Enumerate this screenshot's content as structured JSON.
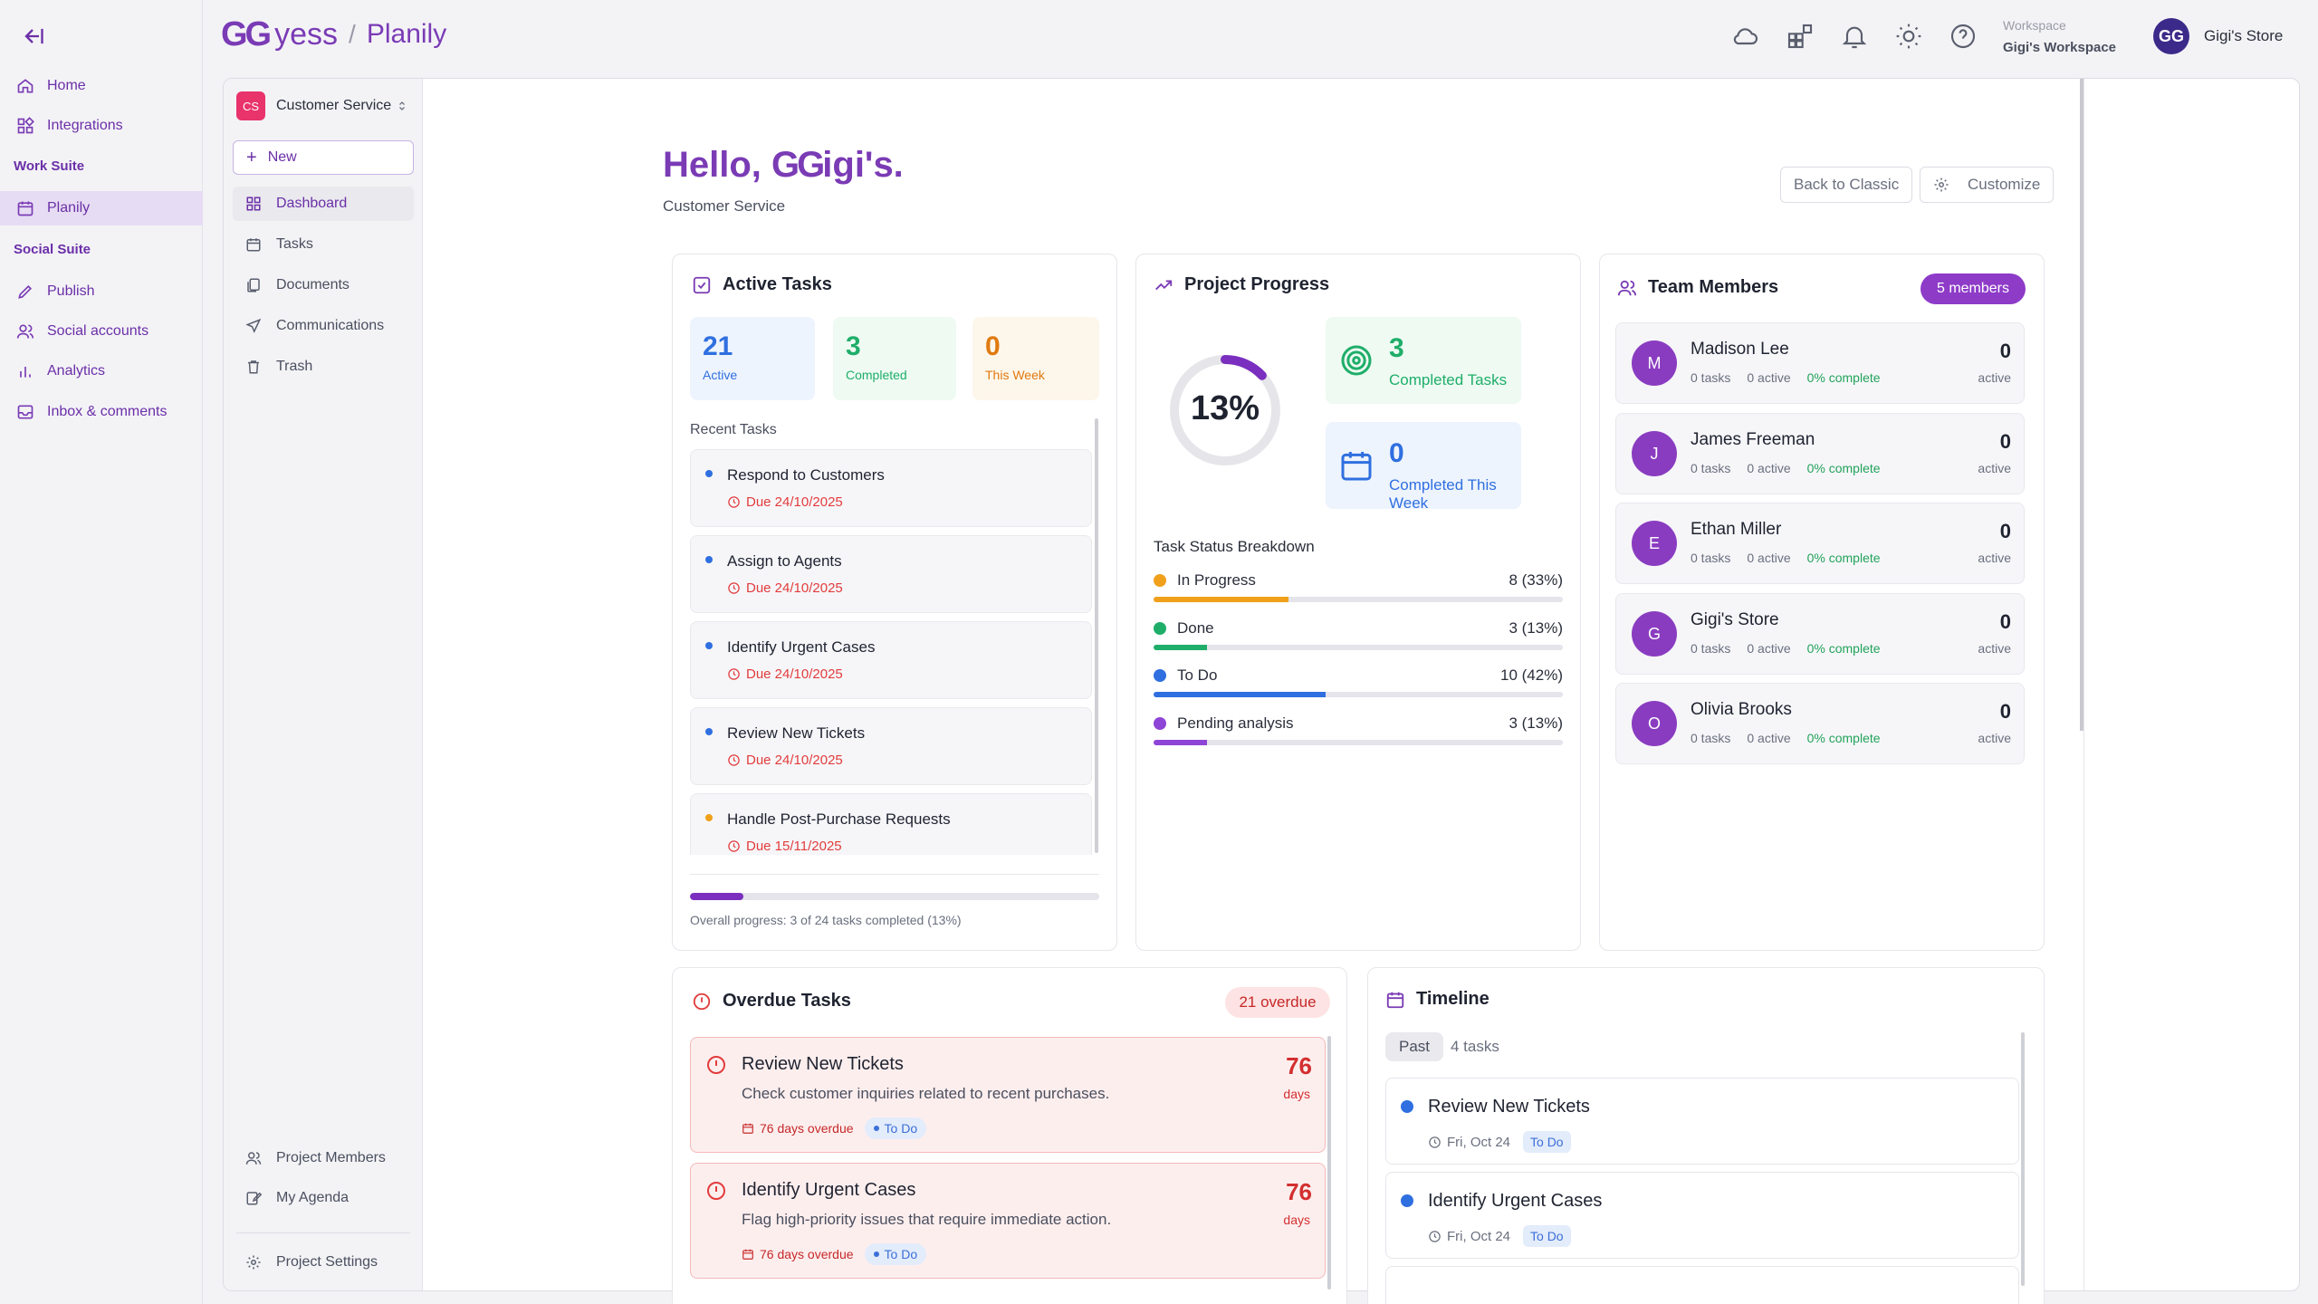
{
  "app": {
    "logo_mark": "GG",
    "logo_word": "yess",
    "separator": "/",
    "app_name": "Planily"
  },
  "appnav": {
    "home": "Home",
    "integrations": "Integrations",
    "work_suite": "Work Suite",
    "planily": "Planily",
    "social_suite": "Social Suite",
    "publish": "Publish",
    "social_accounts": "Social accounts",
    "analytics": "Analytics",
    "inbox": "Inbox & comments"
  },
  "topbar": {
    "workspace_label": "Workspace",
    "workspace_name": "Gigi's Workspace",
    "store_initials": "GG",
    "store_name": "Gigi's Store"
  },
  "project": {
    "badge": "CS",
    "name": "Customer Service",
    "new_label": "New",
    "nav": [
      "Dashboard",
      "Tasks",
      "Documents",
      "Communications",
      "Trash"
    ],
    "bottom_nav": [
      "Project Members",
      "My Agenda",
      "Project Settings"
    ]
  },
  "greeting": {
    "hello": "Hello, ",
    "logo_mark": "GG",
    "name": "igi's.",
    "subtitle": "Customer Service",
    "back_classic": "Back to Classic",
    "customize": "Customize"
  },
  "active_tasks": {
    "title": "Active Tasks",
    "stats": [
      {
        "num": "21",
        "label": "Active"
      },
      {
        "num": "3",
        "label": "Completed"
      },
      {
        "num": "0",
        "label": "This Week"
      }
    ],
    "recent_label": "Recent Tasks",
    "tasks": [
      {
        "name": "Respond to Customers",
        "due": "Due 24/10/2025",
        "dot": "#2f6fe0"
      },
      {
        "name": "Assign to Agents",
        "due": "Due 24/10/2025",
        "dot": "#2f6fe0"
      },
      {
        "name": "Identify Urgent Cases",
        "due": "Due 24/10/2025",
        "dot": "#2f6fe0"
      },
      {
        "name": "Review New Tickets",
        "due": "Due 24/10/2025",
        "dot": "#2f6fe0"
      },
      {
        "name": "Handle Post-Purchase Requests",
        "due": "Due 15/11/2025",
        "dot": "#f0a01a"
      }
    ],
    "overall_progress": 0.13,
    "overall_text": "Overall progress: 3 of 24 tasks completed (13%)"
  },
  "project_progress": {
    "title": "Project Progress",
    "percent": 0.13,
    "percent_label": "13%",
    "completed": {
      "num": "3",
      "label": "Completed Tasks"
    },
    "completed_week": {
      "num": "0",
      "label": "Completed This Week"
    },
    "breakdown_title": "Task Status Breakdown",
    "breakdown": [
      {
        "label": "In Progress",
        "value": "8 (33%)",
        "fraction": 0.33,
        "color": "#f0a01a"
      },
      {
        "label": "Done",
        "value": "3 (13%)",
        "fraction": 0.13,
        "color": "#1fae6a"
      },
      {
        "label": "To Do",
        "value": "10 (42%)",
        "fraction": 0.42,
        "color": "#2f6fe0"
      },
      {
        "label": "Pending analysis",
        "value": "3 (13%)",
        "fraction": 0.13,
        "color": "#8e44d6"
      }
    ]
  },
  "team": {
    "title": "Team Members",
    "badge": "5 members",
    "members": [
      {
        "initial": "M",
        "name": "Madison Lee",
        "tasks": "0 tasks",
        "active": "0 active",
        "pct": "0% complete",
        "count": "0",
        "count_label": "active"
      },
      {
        "initial": "J",
        "name": "James Freeman",
        "tasks": "0 tasks",
        "active": "0 active",
        "pct": "0% complete",
        "count": "0",
        "count_label": "active"
      },
      {
        "initial": "E",
        "name": "Ethan Miller",
        "tasks": "0 tasks",
        "active": "0 active",
        "pct": "0% complete",
        "count": "0",
        "count_label": "active"
      },
      {
        "initial": "G",
        "name": "Gigi's Store",
        "tasks": "0 tasks",
        "active": "0 active",
        "pct": "0% complete",
        "count": "0",
        "count_label": "active"
      },
      {
        "initial": "O",
        "name": "Olivia Brooks",
        "tasks": "0 tasks",
        "active": "0 active",
        "pct": "0% complete",
        "count": "0",
        "count_label": "active"
      }
    ]
  },
  "overdue": {
    "title": "Overdue Tasks",
    "badge": "21 overdue",
    "items": [
      {
        "title": "Review New Tickets",
        "desc": "Check customer inquiries related to recent purchases.",
        "overdue": "76 days overdue",
        "status": "To Do",
        "big": "76",
        "unit": "days"
      },
      {
        "title": "Identify Urgent Cases",
        "desc": "Flag high-priority issues that require immediate action.",
        "overdue": "76 days overdue",
        "status": "To Do",
        "big": "76",
        "unit": "days"
      }
    ]
  },
  "timeline": {
    "title": "Timeline",
    "past": "Past",
    "count": "4 tasks",
    "items": [
      {
        "title": "Review New Tickets",
        "date": "Fri, Oct 24",
        "status": "To Do"
      },
      {
        "title": "Identify Urgent Cases",
        "date": "Fri, Oct 24",
        "status": "To Do"
      }
    ]
  },
  "colors": {
    "brand": "#7a3bb5",
    "danger": "#e23c3c",
    "success": "#1fae6a"
  }
}
